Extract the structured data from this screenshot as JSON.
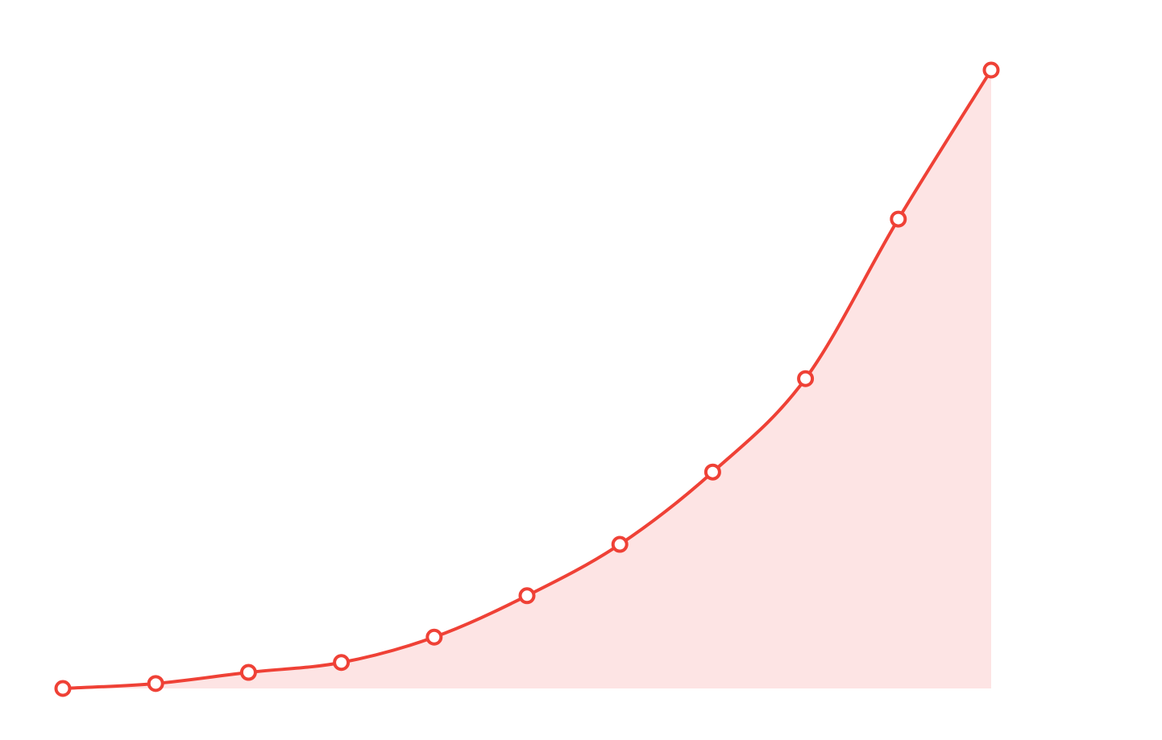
{
  "chart_data": {
    "type": "area",
    "categories": [
      null,
      null,
      null,
      null,
      null,
      null,
      null,
      null,
      null,
      null,
      null
    ],
    "series": [
      {
        "color": "#ef4136",
        "fill": "#fde4e4",
        "values": [
          0,
          0.8,
          2.6,
          4.2,
          8.3,
          15,
          23.3,
          35,
          50.1,
          75.9,
          100
        ]
      }
    ],
    "ylim": [
      0,
      100
    ],
    "grid": false,
    "smooth": true
  }
}
